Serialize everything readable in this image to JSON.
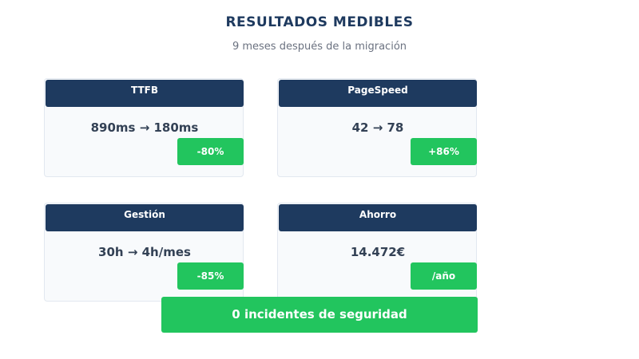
{
  "header": {
    "title": "RESULTADOS MEDIBLES",
    "subtitle": "9 meses después de la migración"
  },
  "cards": [
    {
      "label": "TTFB",
      "value": "890ms → 180ms",
      "badge": "-80%"
    },
    {
      "label": "PageSpeed",
      "value": "42 → 78",
      "badge": "+86%"
    },
    {
      "label": "Gestión",
      "value": "30h → 4h/mes",
      "badge": "-85%"
    },
    {
      "label": "Ahorro",
      "value": "14.472€",
      "badge": "/año"
    }
  ],
  "banner": "0 incidentes de seguridad"
}
